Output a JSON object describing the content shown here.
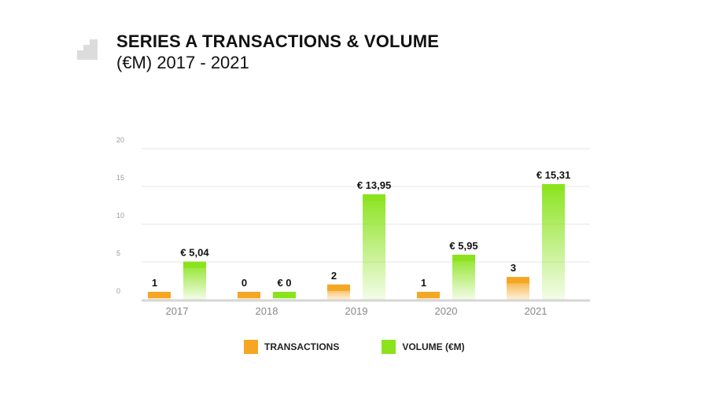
{
  "title": {
    "line1": "SERIES A TRANSACTIONS & VOLUME",
    "line2": "(€M) 2017 - 2021"
  },
  "colors": {
    "transactions": "#f5a623",
    "volume": "#8be31e",
    "grid": "#e6e6e6",
    "axis_text": "#999999",
    "label_text": "#111111",
    "logo": "#dcdcdc"
  },
  "icons": {
    "logo": "staircase-logo-icon"
  },
  "chart_data": {
    "type": "bar",
    "categories": [
      "2017",
      "2018",
      "2019",
      "2020",
      "2021"
    ],
    "yticks": [
      "0",
      "5",
      "10",
      "15",
      "20"
    ],
    "ylim": [
      0,
      20
    ],
    "grid": true,
    "legend_position": "bottom",
    "series": [
      {
        "name": "TRANSACTIONS",
        "values": [
          1,
          0,
          2,
          1,
          3
        ],
        "labels": [
          "1",
          "0",
          "2",
          "1",
          "3"
        ]
      },
      {
        "name": "VOLUME (€M)",
        "values": [
          5.04,
          0,
          13.95,
          5.95,
          15.31
        ],
        "labels": [
          "€ 5,04",
          "€ 0",
          "€ 13,95",
          "€ 5,95",
          "€ 15,31"
        ]
      }
    ]
  }
}
